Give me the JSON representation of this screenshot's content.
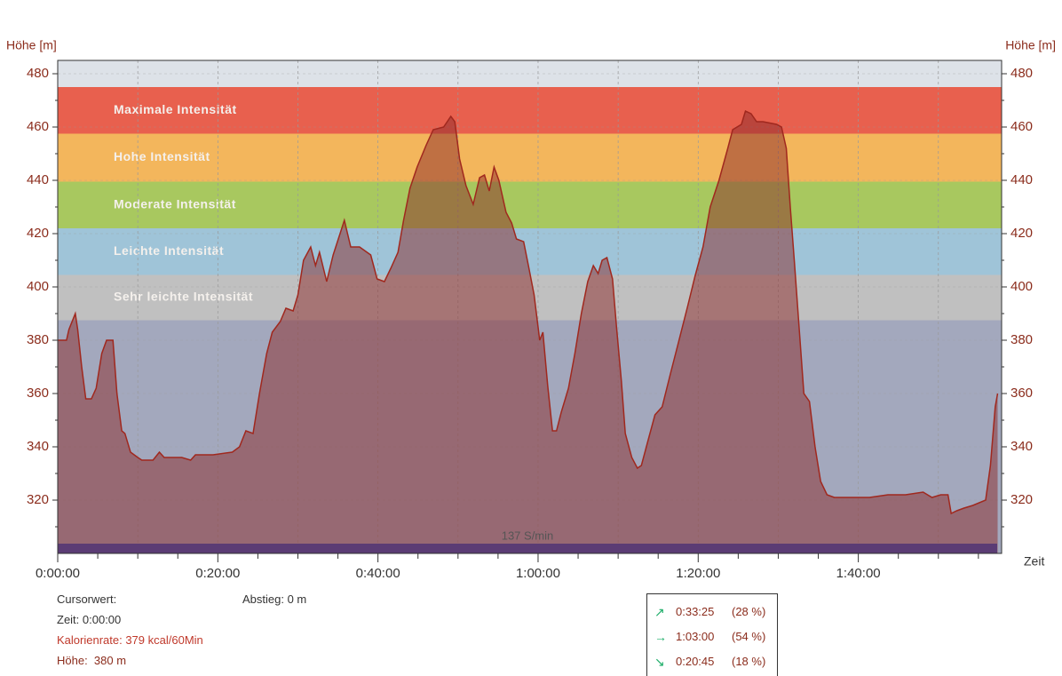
{
  "chart_data": {
    "type": "area",
    "y_label": "Höhe [m]",
    "x_label": "Zeit",
    "x": [
      0,
      1.1,
      1.4,
      2.2,
      2.5,
      3.0,
      3.5,
      4.2,
      4.8,
      5.5,
      6.1,
      6.9,
      7.4,
      8.0,
      8.4,
      9.1,
      10.0,
      10.5,
      11.9,
      12.7,
      13.3,
      14.4,
      15.5,
      16.6,
      17.2,
      19.4,
      21.8,
      22.7,
      23.5,
      24.4,
      25.2,
      26.1,
      26.8,
      27.8,
      28.5,
      29.4,
      30.0,
      30.7,
      31.6,
      32.2,
      32.7,
      33.6,
      34.4,
      35.8,
      36.6,
      37.7,
      39.1,
      39.9,
      40.8,
      41.6,
      42.5,
      43.2,
      44.0,
      44.9,
      46.0,
      46.9,
      48.2,
      49.1,
      49.6,
      50.2,
      51.0,
      51.9,
      52.7,
      53.3,
      53.9,
      54.5,
      55.1,
      56.0,
      56.7,
      57.3,
      58.2,
      58.8,
      59.5,
      60.2,
      60.6,
      61.2,
      61.8,
      62.3,
      62.9,
      63.8,
      64.6,
      65.4,
      66.2,
      66.9,
      67.5,
      68.0,
      68.6,
      69.3,
      69.8,
      70.4,
      70.9,
      71.7,
      72.4,
      72.9,
      73.7,
      74.6,
      75.5,
      76.5,
      77.6,
      78.7,
      79.6,
      80.6,
      81.5,
      82.6,
      83.7,
      84.3,
      85.4,
      85.9,
      86.6,
      87.3,
      88.1,
      89.8,
      90.4,
      91.0,
      91.5,
      92.0,
      92.6,
      93.2,
      93.9,
      94.6,
      95.3,
      96.1,
      97.0,
      99.2,
      101.4,
      103.7,
      105.9,
      108.1,
      109.2,
      110.3,
      111.2,
      111.6,
      112.3,
      113.2,
      114.3,
      115.9,
      116.5,
      117.1,
      117.4
    ],
    "values": [
      380,
      380,
      384,
      390,
      384,
      370,
      358,
      358,
      362,
      375,
      380,
      380,
      360,
      346,
      345,
      338,
      336,
      335,
      335,
      338,
      336,
      336,
      336,
      335,
      337,
      337,
      338,
      340,
      346,
      345,
      360,
      375,
      383,
      387,
      392,
      391,
      397,
      410,
      415,
      408,
      413,
      402,
      412,
      425,
      415,
      415,
      412,
      403,
      402,
      407,
      413,
      425,
      437,
      445,
      453,
      459,
      460,
      464,
      462,
      448,
      438,
      431,
      441,
      442,
      436,
      445,
      440,
      428,
      424,
      418,
      417,
      408,
      397,
      380,
      383,
      363,
      346,
      346,
      353,
      362,
      375,
      390,
      402,
      408,
      405,
      410,
      411,
      403,
      385,
      365,
      345,
      336,
      332,
      333,
      342,
      352,
      355,
      367,
      380,
      393,
      404,
      415,
      430,
      440,
      452,
      459,
      461,
      466,
      465,
      462,
      462,
      461,
      460,
      452,
      430,
      410,
      385,
      360,
      357,
      340,
      327,
      322,
      321,
      321,
      321,
      322,
      322,
      323,
      321,
      322,
      322,
      315,
      316,
      317,
      318,
      320,
      333,
      355,
      360
    ],
    "line_color": "#a0281e",
    "fill_color": "#8b2a2a",
    "xlim": [
      0,
      117.9
    ],
    "xticks": [
      {
        "value": 0,
        "label": "0:00:00"
      },
      {
        "value": 20,
        "label": "0:20:00"
      },
      {
        "value": 40,
        "label": "0:40:00"
      },
      {
        "value": 60,
        "label": "1:00:00"
      },
      {
        "value": 80,
        "label": "1:20:00"
      },
      {
        "value": 100,
        "label": "1:40:00"
      }
    ],
    "xminorticks": [
      5,
      10,
      15,
      25,
      30,
      35,
      45,
      50,
      55,
      65,
      70,
      75,
      85,
      90,
      95,
      105,
      110,
      115
    ],
    "xgridlines": [
      10,
      20,
      30,
      40,
      50,
      60,
      70,
      80,
      90,
      100,
      110
    ],
    "ylim": [
      300,
      485
    ],
    "yticks": [
      320,
      340,
      360,
      380,
      400,
      420,
      440,
      460,
      480
    ],
    "yminorticks": [
      310,
      330,
      350,
      370,
      390,
      410,
      430,
      450,
      470
    ],
    "plot_background": "#dde2e8",
    "below_zone_color": "#a3a8bd",
    "zones": [
      {
        "name": "Maximale Intensität",
        "min": 457.5,
        "max": 475,
        "color": "#e8604e"
      },
      {
        "name": "Hohe Intensität",
        "min": 439.5,
        "max": 457.5,
        "color": "#f3b65c"
      },
      {
        "name": "Moderate Intensität",
        "min": 422,
        "max": 439.5,
        "color": "#a8c85f"
      },
      {
        "name": "Leichte Intensität",
        "min": 404.5,
        "max": 422,
        "color": "#9fc4d8"
      },
      {
        "name": "Sehr leichte Intensität",
        "min": 387.5,
        "max": 404.5,
        "color": "#c0c0c0"
      }
    ],
    "cadence_label": "137 S/min",
    "cadence_color": "#2a4fbf"
  },
  "panel": {
    "cursor": "Cursorwert:",
    "descent": "Abstieg: 0 m",
    "time": "Zeit: 0:00:00",
    "calories": "Kalorienrate: 379 kcal/60Min",
    "height": "Höhe:  380 m"
  },
  "summary": [
    {
      "time": "0:33:25",
      "share": "(28 %)"
    },
    {
      "time": "1:03:00",
      "share": "(54 %)"
    },
    {
      "time": "0:20:45",
      "share": "(18 %)"
    }
  ]
}
